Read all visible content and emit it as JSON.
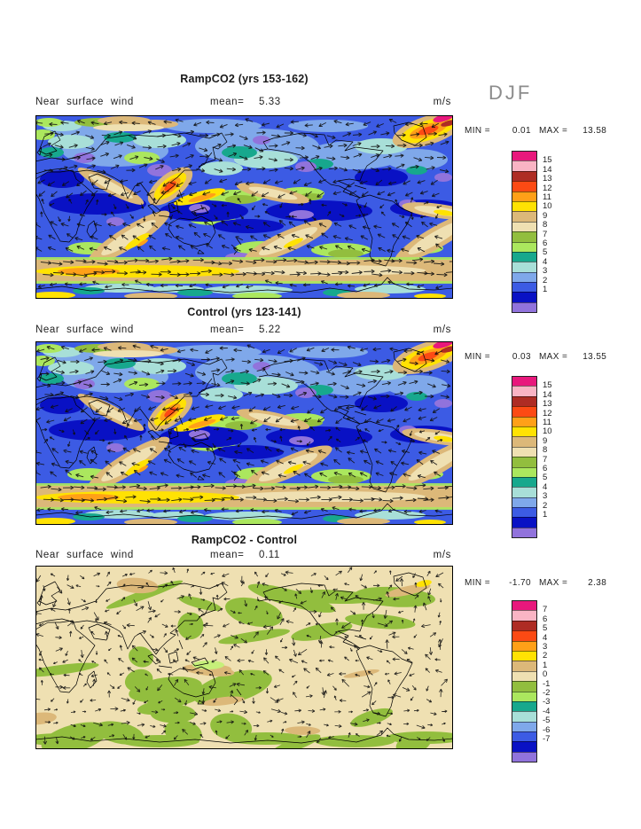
{
  "page": {
    "season": "DJF"
  },
  "panels": [
    {
      "title": "RampCO2 (yrs 153-162)",
      "field_label": "Near surface wind",
      "mean_label": "mean=",
      "mean_value": "5.33",
      "units": "m/s",
      "stats": {
        "min_label": "MIN =",
        "min_value": "0.01",
        "max_label": "MAX =",
        "max_value": "13.58"
      },
      "map_kind": "wind",
      "colorbar": {
        "tick_labels": [
          "15",
          "14",
          "13",
          "12",
          "11",
          "10",
          "9",
          "8",
          "7",
          "6",
          "5",
          "4",
          "3",
          "2",
          "1"
        ],
        "colors": [
          "#E8187C",
          "#F9B4C4",
          "#AE2C24",
          "#FC4A14",
          "#FFA018",
          "#FFE203",
          "#DCB879",
          "#EFE0B2",
          "#92BE3E",
          "#ABE75E",
          "#17A88D",
          "#A8DFD8",
          "#7FA8EA",
          "#3C5BE4",
          "#0911C4",
          "#9173DC"
        ]
      }
    },
    {
      "title": "Control (yrs 123-141)",
      "field_label": "Near surface wind",
      "mean_label": "mean=",
      "mean_value": "5.22",
      "units": "m/s",
      "stats": {
        "min_label": "MIN =",
        "min_value": "0.03",
        "max_label": "MAX =",
        "max_value": "13.55"
      },
      "map_kind": "wind",
      "colorbar": {
        "tick_labels": [
          "15",
          "14",
          "13",
          "12",
          "11",
          "10",
          "9",
          "8",
          "7",
          "6",
          "5",
          "4",
          "3",
          "2",
          "1"
        ],
        "colors": [
          "#E8187C",
          "#F9B4C4",
          "#AE2C24",
          "#FC4A14",
          "#FFA018",
          "#FFE203",
          "#DCB879",
          "#EFE0B2",
          "#92BE3E",
          "#ABE75E",
          "#17A88D",
          "#A8DFD8",
          "#7FA8EA",
          "#3C5BE4",
          "#0911C4",
          "#9173DC"
        ]
      }
    },
    {
      "title": "RampCO2 - Control",
      "field_label": "Near surface wind",
      "mean_label": "mean=",
      "mean_value": "0.11",
      "units": "m/s",
      "stats": {
        "min_label": "MIN =",
        "min_value": "-1.70",
        "max_label": "MAX =",
        "max_value": "2.38"
      },
      "map_kind": "diff",
      "colorbar": {
        "tick_labels": [
          "7",
          "6",
          "5",
          "4",
          "3",
          "2",
          "1",
          "0",
          "-1",
          "-2",
          "-3",
          "-4",
          "-5",
          "-6",
          "-7"
        ],
        "colors": [
          "#E8187C",
          "#F9B4C4",
          "#AE2C24",
          "#FC4A14",
          "#FFA018",
          "#FFE203",
          "#DCB879",
          "#EFE0B2",
          "#92BE3E",
          "#ABE75E",
          "#17A88D",
          "#A8DFD8",
          "#7FA8EA",
          "#3C5BE4",
          "#0911C4",
          "#9173DC"
        ]
      }
    }
  ],
  "chart_data": [
    {
      "type": "heatmap",
      "title": "RampCO2 (yrs 153-162)",
      "season": "DJF",
      "variable": "Near surface wind",
      "units": "m/s",
      "mean": 5.33,
      "min": 0.01,
      "max": 13.58,
      "contour_levels": [
        1,
        2,
        3,
        4,
        5,
        6,
        7,
        8,
        9,
        10,
        11,
        12,
        13,
        14,
        15
      ],
      "palette_top_to_bottom": [
        "#E8187C",
        "#F9B4C4",
        "#AE2C24",
        "#FC4A14",
        "#FFA018",
        "#FFE203",
        "#DCB879",
        "#EFE0B2",
        "#92BE3E",
        "#ABE75E",
        "#17A88D",
        "#A8DFD8",
        "#7FA8EA",
        "#3C5BE4",
        "#0911C4",
        "#9173DC"
      ],
      "projection": "global cylindrical, 0E-360E, 90N-90S",
      "overlay": "wind vector arrows",
      "legend_position": "right"
    },
    {
      "type": "heatmap",
      "title": "Control (yrs 123-141)",
      "season": "DJF",
      "variable": "Near surface wind",
      "units": "m/s",
      "mean": 5.22,
      "min": 0.03,
      "max": 13.55,
      "contour_levels": [
        1,
        2,
        3,
        4,
        5,
        6,
        7,
        8,
        9,
        10,
        11,
        12,
        13,
        14,
        15
      ],
      "palette_top_to_bottom": [
        "#E8187C",
        "#F9B4C4",
        "#AE2C24",
        "#FC4A14",
        "#FFA018",
        "#FFE203",
        "#DCB879",
        "#EFE0B2",
        "#92BE3E",
        "#ABE75E",
        "#17A88D",
        "#A8DFD8",
        "#7FA8EA",
        "#3C5BE4",
        "#0911C4",
        "#9173DC"
      ],
      "projection": "global cylindrical, 0E-360E, 90N-90S",
      "overlay": "wind vector arrows",
      "legend_position": "right"
    },
    {
      "type": "heatmap",
      "title": "RampCO2 - Control",
      "season": "DJF",
      "variable": "Near surface wind difference",
      "units": "m/s",
      "mean": 0.11,
      "min": -1.7,
      "max": 2.38,
      "contour_levels": [
        -7,
        -6,
        -5,
        -4,
        -3,
        -2,
        -1,
        0,
        1,
        2,
        3,
        4,
        5,
        6,
        7
      ],
      "palette_top_to_bottom": [
        "#E8187C",
        "#F9B4C4",
        "#AE2C24",
        "#FC4A14",
        "#FFA018",
        "#FFE203",
        "#DCB879",
        "#EFE0B2",
        "#92BE3E",
        "#ABE75E",
        "#17A88D",
        "#A8DFD8",
        "#7FA8EA",
        "#3C5BE4",
        "#0911C4",
        "#9173DC"
      ],
      "projection": "global cylindrical, 0E-360E, 90N-90S",
      "overlay": "wind difference vector arrows",
      "legend_position": "right"
    }
  ]
}
